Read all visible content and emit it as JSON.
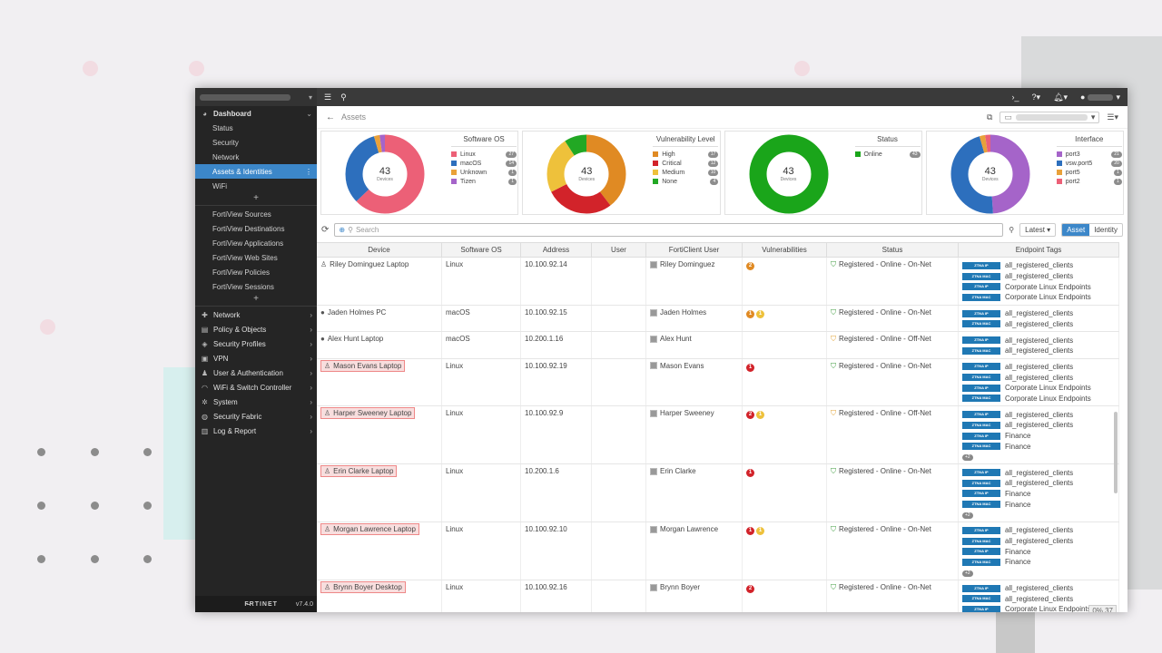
{
  "sidebar": {
    "dashboard": "Dashboard",
    "dashboard_items": [
      "Status",
      "Security",
      "Network",
      "Assets & Identities",
      "WiFi"
    ],
    "fortiview_items": [
      "FortiView Sources",
      "FortiView Destinations",
      "FortiView Applications",
      "FortiView Web Sites",
      "FortiView Policies",
      "FortiView Sessions"
    ],
    "menu": [
      {
        "label": "Network",
        "icon": "network-icon"
      },
      {
        "label": "Policy & Objects",
        "icon": "policy-icon"
      },
      {
        "label": "Security Profiles",
        "icon": "security-profile-icon"
      },
      {
        "label": "VPN",
        "icon": "vpn-icon"
      },
      {
        "label": "User & Authentication",
        "icon": "user-icon"
      },
      {
        "label": "WiFi & Switch Controller",
        "icon": "wifi-icon"
      },
      {
        "label": "System",
        "icon": "gear-icon"
      },
      {
        "label": "Security Fabric",
        "icon": "fabric-icon"
      },
      {
        "label": "Log & Report",
        "icon": "chart-icon"
      }
    ],
    "brand": "F̶RTINET",
    "version": "v7.4.0"
  },
  "breadcrumb": "Assets",
  "widgets": [
    {
      "title": "Software OS",
      "total": "43",
      "center_label": "Devices",
      "items": [
        {
          "label": "Linux",
          "count": "27",
          "color": "#ec6077"
        },
        {
          "label": "macOS",
          "count": "14",
          "color": "#2d6fbd"
        },
        {
          "label": "Unknown",
          "count": "1",
          "color": "#e9a13a"
        },
        {
          "label": "Tizen",
          "count": "1",
          "color": "#a564c9"
        }
      ]
    },
    {
      "title": "Vulnerability Level",
      "total": "43",
      "center_label": "Devices",
      "items": [
        {
          "label": "High",
          "count": "17",
          "color": "#e08a23"
        },
        {
          "label": "Critical",
          "count": "12",
          "color": "#d2232a"
        },
        {
          "label": "Medium",
          "count": "10",
          "color": "#eec13b"
        },
        {
          "label": "None",
          "count": "4",
          "color": "#22a824"
        }
      ]
    },
    {
      "title": "Status",
      "total": "43",
      "center_label": "Devices",
      "items": [
        {
          "label": "Online",
          "count": "43",
          "color": "#1aa51a"
        }
      ]
    },
    {
      "title": "Interface",
      "total": "43",
      "center_label": "Devices",
      "items": [
        {
          "label": "port3",
          "count": "21",
          "color": "#a564c9"
        },
        {
          "label": "vsw.port5",
          "count": "20",
          "color": "#2d6fbd"
        },
        {
          "label": "port5",
          "count": "1",
          "color": "#e9a13a"
        },
        {
          "label": "port2",
          "count": "1",
          "color": "#ec6077"
        }
      ]
    }
  ],
  "toolbar": {
    "search_placeholder": "Search",
    "latest": "Latest",
    "asset": "Asset",
    "identity": "Identity"
  },
  "table": {
    "columns": [
      "Device",
      "Software OS",
      "Address",
      "User",
      "FortiClient User",
      "Vulnerabilities",
      "Status",
      "Endpoint Tags"
    ],
    "rows": [
      {
        "device": "Riley Dominguez Laptop",
        "os": "Linux",
        "addr": "10.100.92.14",
        "fcuser": "Riley Dominguez",
        "vulns": [
          {
            "n": "2",
            "c": "#e08a23"
          }
        ],
        "status": "Registered - Online - On-Net",
        "status_color": "#3a9a3a",
        "highlight": false,
        "icon": "linux-icon",
        "tags": [
          [
            "ZTNA IP",
            "all_registered_clients"
          ],
          [
            "ZTNA MAC",
            "all_registered_clients"
          ],
          [
            "ZTNA IP",
            "Corporate Linux Endpoints"
          ],
          [
            "ZTNA MAC",
            "Corporate Linux Endpoints"
          ]
        ],
        "more": ""
      },
      {
        "device": "Jaden Holmes PC",
        "os": "macOS",
        "addr": "10.100.92.15",
        "fcuser": "Jaden Holmes",
        "vulns": [
          {
            "n": "1",
            "c": "#e08a23"
          },
          {
            "n": "1",
            "c": "#eec13b"
          }
        ],
        "status": "Registered - Online - On-Net",
        "status_color": "#3a9a3a",
        "highlight": false,
        "icon": "apple-icon",
        "tags": [
          [
            "ZTNA IP",
            "all_registered_clients"
          ],
          [
            "ZTNA MAC",
            "all_registered_clients"
          ]
        ],
        "more": ""
      },
      {
        "device": "Alex Hunt Laptop",
        "os": "macOS",
        "addr": "10.200.1.16",
        "fcuser": "Alex Hunt",
        "vulns": [],
        "status": "Registered - Online - Off-Net",
        "status_color": "#e0a030",
        "highlight": false,
        "icon": "apple-icon",
        "tags": [
          [
            "ZTNA IP",
            "all_registered_clients"
          ],
          [
            "ZTNA MAC",
            "all_registered_clients"
          ]
        ],
        "more": ""
      },
      {
        "device": "Mason Evans Laptop",
        "os": "Linux",
        "addr": "10.100.92.19",
        "fcuser": "Mason Evans",
        "vulns": [
          {
            "n": "1",
            "c": "#d2232a"
          }
        ],
        "status": "Registered - Online - On-Net",
        "status_color": "#3a9a3a",
        "highlight": true,
        "icon": "linux-icon",
        "tags": [
          [
            "ZTNA IP",
            "all_registered_clients"
          ],
          [
            "ZTNA MAC",
            "all_registered_clients"
          ],
          [
            "ZTNA IP",
            "Corporate Linux Endpoints"
          ],
          [
            "ZTNA MAC",
            "Corporate Linux Endpoints"
          ]
        ],
        "more": ""
      },
      {
        "device": "Harper Sweeney Laptop",
        "os": "Linux",
        "addr": "10.100.92.9",
        "fcuser": "Harper Sweeney",
        "vulns": [
          {
            "n": "2",
            "c": "#d2232a"
          },
          {
            "n": "1",
            "c": "#eec13b"
          }
        ],
        "status": "Registered - Online - Off-Net",
        "status_color": "#e0a030",
        "highlight": true,
        "icon": "linux-icon",
        "tags": [
          [
            "ZTNA IP",
            "all_registered_clients"
          ],
          [
            "ZTNA MAC",
            "all_registered_clients"
          ],
          [
            "ZTNA IP",
            "Finance"
          ],
          [
            "ZTNA MAC",
            "Finance"
          ]
        ],
        "more": "+2"
      },
      {
        "device": "Erin Clarke Laptop",
        "os": "Linux",
        "addr": "10.200.1.6",
        "fcuser": "Erin Clarke",
        "vulns": [
          {
            "n": "1",
            "c": "#d2232a"
          }
        ],
        "status": "Registered - Online - On-Net",
        "status_color": "#3a9a3a",
        "highlight": true,
        "icon": "linux-icon",
        "tags": [
          [
            "ZTNA IP",
            "all_registered_clients"
          ],
          [
            "ZTNA MAC",
            "all_registered_clients"
          ],
          [
            "ZTNA IP",
            "Finance"
          ],
          [
            "ZTNA MAC",
            "Finance"
          ]
        ],
        "more": "+2"
      },
      {
        "device": "Morgan Lawrence Laptop",
        "os": "Linux",
        "addr": "10.100.92.10",
        "fcuser": "Morgan Lawrence",
        "vulns": [
          {
            "n": "1",
            "c": "#d2232a"
          },
          {
            "n": "1",
            "c": "#eec13b"
          }
        ],
        "status": "Registered - Online - On-Net",
        "status_color": "#3a9a3a",
        "highlight": true,
        "icon": "linux-icon",
        "tags": [
          [
            "ZTNA IP",
            "all_registered_clients"
          ],
          [
            "ZTNA MAC",
            "all_registered_clients"
          ],
          [
            "ZTNA IP",
            "Finance"
          ],
          [
            "ZTNA MAC",
            "Finance"
          ]
        ],
        "more": "+2"
      },
      {
        "device": "Brynn Boyer Desktop",
        "os": "Linux",
        "addr": "10.100.92.16",
        "fcuser": "Brynn Boyer",
        "vulns": [
          {
            "n": "2",
            "c": "#d2232a"
          }
        ],
        "status": "Registered - Online - On-Net",
        "status_color": "#3a9a3a",
        "highlight": true,
        "icon": "linux-icon",
        "tags": [
          [
            "ZTNA IP",
            "all_registered_clients"
          ],
          [
            "ZTNA MAC",
            "all_registered_clients"
          ],
          [
            "ZTNA IP",
            "Corporate Linux Endpoints"
          ]
        ],
        "more": ""
      }
    ]
  },
  "status_pct": "0% 37"
}
